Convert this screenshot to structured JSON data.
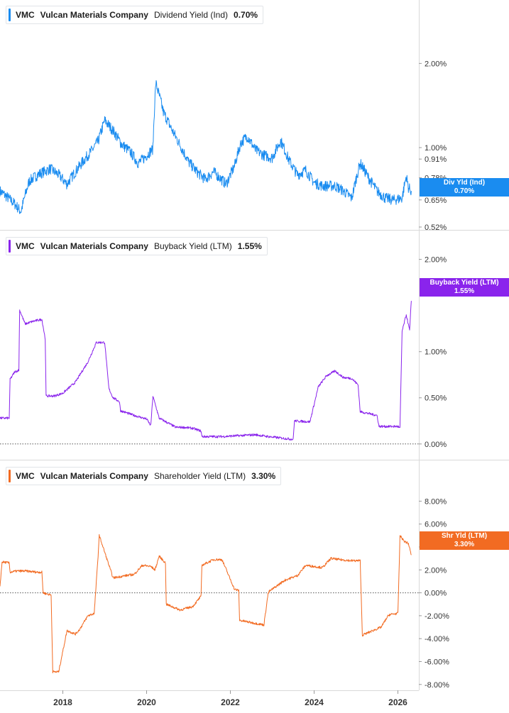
{
  "x_axis": {
    "ticks": [
      "2018",
      "2020",
      "2022",
      "2024",
      "2026"
    ]
  },
  "chart_data": [
    {
      "type": "line",
      "ticker": "VMC",
      "company": "Vulcan Materials Company",
      "metric": "Dividend Yield (Ind)",
      "current_value": "0.70%",
      "badge": {
        "label": "Div Yld (Ind)",
        "value": "0.70%"
      },
      "color": "#1a8cf0",
      "scale": "log",
      "ylim": [
        0.52,
        2.7
      ],
      "y_ticks": [
        {
          "label": "2.00%",
          "value": 2.0
        },
        {
          "label": "1.00%",
          "value": 1.0
        },
        {
          "label": "0.91%",
          "value": 0.91
        },
        {
          "label": "0.78%",
          "value": 0.78
        },
        {
          "label": "0.65%",
          "value": 0.65
        },
        {
          "label": "0.52%",
          "value": 0.52
        }
      ],
      "zero_line": false,
      "xlim": [
        2016.5,
        2026.5
      ],
      "x": [
        2016.5,
        2016.85,
        2017.0,
        2017.2,
        2017.4,
        2017.7,
        2017.9,
        2018.1,
        2018.3,
        2018.5,
        2018.7,
        2018.85,
        2019.0,
        2019.2,
        2019.4,
        2019.6,
        2019.8,
        2019.95,
        2020.15,
        2020.22,
        2020.4,
        2020.6,
        2020.8,
        2021.0,
        2021.2,
        2021.4,
        2021.6,
        2021.9,
        2022.1,
        2022.25,
        2022.4,
        2022.6,
        2022.8,
        2023.0,
        2023.2,
        2023.4,
        2023.6,
        2023.8,
        2024.0,
        2024.2,
        2024.5,
        2024.7,
        2024.9,
        2025.1,
        2025.3,
        2025.5,
        2025.7,
        2025.9,
        2026.1,
        2026.2,
        2026.25,
        2026.32
      ],
      "values": [
        0.7,
        0.63,
        0.59,
        0.76,
        0.8,
        0.84,
        0.8,
        0.74,
        0.82,
        0.9,
        0.98,
        1.06,
        1.25,
        1.15,
        1.03,
        0.97,
        0.88,
        0.92,
        0.99,
        1.7,
        1.34,
        1.16,
        1.02,
        0.89,
        0.82,
        0.77,
        0.82,
        0.74,
        0.86,
        1.04,
        1.1,
        0.98,
        0.94,
        0.92,
        1.06,
        0.9,
        0.8,
        0.83,
        0.75,
        0.73,
        0.73,
        0.7,
        0.66,
        0.88,
        0.78,
        0.7,
        0.66,
        0.65,
        0.66,
        0.79,
        0.72,
        0.7
      ]
    },
    {
      "type": "line",
      "ticker": "VMC",
      "company": "Vulcan Materials Company",
      "metric": "Buyback Yield (LTM)",
      "current_value": "1.55%",
      "badge": {
        "label": "Buyback Yield (LTM)",
        "value": "1.55%"
      },
      "color": "#8a24ec",
      "scale": "linear",
      "ylim": [
        -0.14,
        2.02
      ],
      "y_ticks": [
        {
          "label": "2.00%",
          "value": 2.0
        },
        {
          "label": "1.00%",
          "value": 1.0
        },
        {
          "label": "0.50%",
          "value": 0.5
        },
        {
          "label": "0.00%",
          "value": 0.0
        }
      ],
      "zero_line": true,
      "xlim": [
        2016.5,
        2026.5
      ],
      "x": [
        2016.5,
        2016.72,
        2016.74,
        2016.85,
        2016.95,
        2016.97,
        2017.1,
        2017.3,
        2017.5,
        2017.58,
        2017.6,
        2017.8,
        2018.0,
        2018.3,
        2018.6,
        2018.8,
        2019.0,
        2019.1,
        2019.2,
        2019.35,
        2019.38,
        2019.7,
        2020.0,
        2020.1,
        2020.15,
        2020.3,
        2020.5,
        2020.7,
        2020.9,
        2021.1,
        2021.3,
        2021.32,
        2021.8,
        2022.2,
        2022.6,
        2022.9,
        2023.3,
        2023.5,
        2023.53,
        2023.9,
        2024.1,
        2024.3,
        2024.5,
        2024.7,
        2024.9,
        2025.05,
        2025.1,
        2025.5,
        2025.55,
        2026.0,
        2026.05,
        2026.1,
        2026.2,
        2026.28,
        2026.32
      ],
      "values": [
        0.28,
        0.28,
        0.7,
        0.78,
        0.8,
        1.45,
        1.3,
        1.33,
        1.35,
        1.14,
        0.52,
        0.52,
        0.55,
        0.67,
        0.89,
        1.1,
        1.1,
        0.6,
        0.5,
        0.46,
        0.36,
        0.31,
        0.27,
        0.2,
        0.52,
        0.28,
        0.23,
        0.18,
        0.18,
        0.17,
        0.14,
        0.08,
        0.08,
        0.09,
        0.1,
        0.08,
        0.06,
        0.05,
        0.25,
        0.24,
        0.62,
        0.74,
        0.79,
        0.72,
        0.71,
        0.64,
        0.35,
        0.31,
        0.19,
        0.19,
        0.17,
        1.22,
        1.4,
        1.23,
        1.55
      ]
    },
    {
      "type": "line",
      "ticker": "VMC",
      "company": "Vulcan Materials Company",
      "metric": "Shareholder Yield (LTM)",
      "current_value": "3.30%",
      "badge": {
        "label": "Shr Yld (LTM)",
        "value": "3.30%"
      },
      "color": "#f26b22",
      "scale": "linear",
      "ylim": [
        -8.2,
        9.2
      ],
      "y_ticks": [
        {
          "label": "8.00%",
          "value": 8
        },
        {
          "label": "6.00%",
          "value": 6
        },
        {
          "label": "4.00%",
          "value": 4
        },
        {
          "label": "2.00%",
          "value": 2
        },
        {
          "label": "0.00%",
          "value": 0
        },
        {
          "label": "-2.00%",
          "value": -2
        },
        {
          "label": "-4.00%",
          "value": -4
        },
        {
          "label": "-6.00%",
          "value": -6
        },
        {
          "label": "-8.00%",
          "value": -8
        }
      ],
      "zero_line": true,
      "xlim": [
        2016.5,
        2026.5
      ],
      "x": [
        2016.5,
        2016.55,
        2016.72,
        2016.74,
        2016.9,
        2017.1,
        2017.4,
        2017.5,
        2017.53,
        2017.72,
        2017.76,
        2017.9,
        2018.1,
        2018.3,
        2018.4,
        2018.6,
        2018.75,
        2018.85,
        2018.87,
        2019.2,
        2019.5,
        2019.7,
        2019.9,
        2020.1,
        2020.2,
        2020.3,
        2020.45,
        2020.47,
        2020.8,
        2021.1,
        2021.3,
        2021.32,
        2021.6,
        2021.8,
        2022.1,
        2022.2,
        2022.22,
        2022.5,
        2022.8,
        2022.9,
        2022.92,
        2023.3,
        2023.6,
        2023.8,
        2024.0,
        2024.2,
        2024.4,
        2024.6,
        2024.9,
        2025.1,
        2025.15,
        2025.4,
        2025.6,
        2025.75,
        2025.8,
        2026.0,
        2026.05,
        2026.15,
        2026.25,
        2026.32
      ],
      "values": [
        0.6,
        2.7,
        2.6,
        1.8,
        1.9,
        1.9,
        1.8,
        1.8,
        0.0,
        -0.2,
        -6.9,
        -6.9,
        -3.3,
        -3.6,
        -3.2,
        -2.0,
        -1.8,
        3.7,
        5.0,
        1.3,
        1.5,
        1.6,
        2.4,
        2.3,
        2.0,
        3.2,
        2.6,
        -1.0,
        -1.5,
        -1.2,
        -0.3,
        2.4,
        2.9,
        2.9,
        0.3,
        0.2,
        -2.4,
        -2.6,
        -2.8,
        -0.1,
        0.1,
        1.1,
        1.5,
        2.4,
        2.3,
        2.2,
        3.0,
        2.9,
        2.8,
        2.8,
        -3.7,
        -3.3,
        -3.0,
        -2.1,
        -1.9,
        -1.8,
        5.0,
        4.5,
        4.3,
        3.3
      ]
    }
  ]
}
